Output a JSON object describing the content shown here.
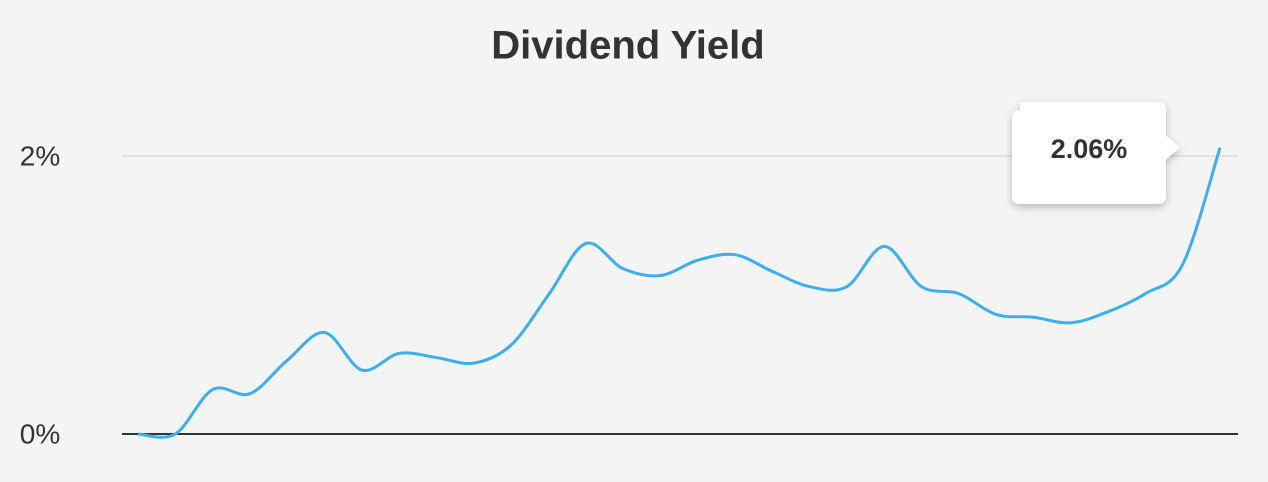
{
  "chart_data": {
    "type": "line",
    "title": "Dividend Yield",
    "categories": [
      null,
      null,
      null,
      null,
      null,
      null,
      null,
      null,
      null,
      null,
      null,
      null,
      null,
      null,
      null,
      null,
      null,
      null,
      null,
      null,
      null,
      null,
      null,
      null,
      null,
      null,
      null,
      null,
      null,
      null
    ],
    "series": [
      {
        "color": "#3daef0",
        "values": [
          0,
          0,
          0.32,
          0.29,
          0.53,
          0.73,
          0.46,
          0.58,
          0.55,
          0.51,
          0.64,
          1.0,
          1.37,
          1.19,
          1.14,
          1.25,
          1.29,
          1.17,
          1.06,
          1.06,
          1.35,
          1.06,
          1.01,
          0.86,
          0.84,
          0.8,
          0.88,
          1.01,
          1.22,
          2.06
        ],
        "value_labels": [
          null,
          null,
          null,
          null,
          null,
          null,
          null,
          null,
          null,
          null,
          null,
          null,
          null,
          null,
          null,
          null,
          null,
          null,
          null,
          null,
          null,
          null,
          null,
          null,
          null,
          null,
          null,
          null,
          null,
          "2.06%"
        ]
      }
    ],
    "ylim": [
      0,
      2.2
    ],
    "yticks": [
      {
        "value": 0,
        "label": "0%"
      },
      {
        "value": 2,
        "label": "2%"
      }
    ],
    "grid": true
  }
}
